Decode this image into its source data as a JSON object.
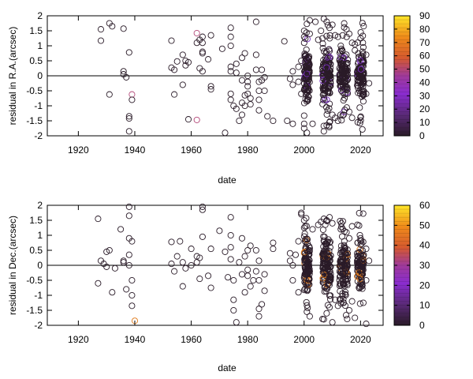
{
  "chart_data": [
    {
      "type": "scatter",
      "title": "",
      "xlabel": "date",
      "ylabel": "residual in R.A.(arcsec)",
      "xlim": [
        1909,
        2028
      ],
      "ylim": [
        -2,
        2
      ],
      "xticks": [
        "1920",
        "1940",
        "1960",
        "1980",
        "2000",
        "2020"
      ],
      "xtick_values": [
        1920,
        1940,
        1960,
        1980,
        2000,
        2020
      ],
      "yticks": [
        "-2",
        "-1.5",
        "-1",
        "-0.5",
        "0",
        "0.5",
        "1",
        "1.5",
        "2"
      ],
      "ytick_values": [
        -2,
        -1.5,
        -1,
        -0.5,
        0,
        0.5,
        1,
        1.5,
        2
      ],
      "zero_line": true,
      "grid": false,
      "colorbar": {
        "range": [
          0,
          90
        ],
        "ticks": [
          "0",
          "10",
          "20",
          "30",
          "40",
          "50",
          "60",
          "70",
          "80",
          "90"
        ],
        "tick_values": [
          0,
          10,
          20,
          30,
          40,
          50,
          60,
          70,
          80,
          90
        ]
      },
      "dense_clusters": [
        {
          "x": 2001,
          "spread": 1.0,
          "n": 120,
          "sigma": 0.45
        },
        {
          "x": 2008,
          "spread": 1.5,
          "n": 140,
          "sigma": 0.45
        },
        {
          "x": 2014,
          "spread": 1.5,
          "n": 130,
          "sigma": 0.4
        },
        {
          "x": 2020,
          "spread": 1.2,
          "n": 110,
          "sigma": 0.3
        }
      ],
      "points": [
        [
          1928,
          1.55,
          5
        ],
        [
          1928,
          1.17,
          5
        ],
        [
          1931,
          1.75,
          5
        ],
        [
          1932,
          1.65,
          5
        ],
        [
          1931,
          -0.62,
          5
        ],
        [
          1936,
          1.57,
          5
        ],
        [
          1936,
          0.15,
          5
        ],
        [
          1936,
          0.05,
          5
        ],
        [
          1937,
          -0.05,
          5
        ],
        [
          1938,
          0.78,
          5
        ],
        [
          1939,
          -0.62,
          50
        ],
        [
          1939,
          -0.8,
          5
        ],
        [
          1938,
          -1.35,
          5
        ],
        [
          1938,
          -1.42,
          5
        ],
        [
          1938,
          -1.85,
          5
        ],
        [
          1953,
          1.17,
          5
        ],
        [
          1953,
          0.27,
          5
        ],
        [
          1954,
          0.2,
          5
        ],
        [
          1954,
          -0.62,
          5
        ],
        [
          1955,
          0.48,
          5
        ],
        [
          1957,
          0.7,
          5
        ],
        [
          1957,
          -0.3,
          5
        ],
        [
          1958,
          0.5,
          5
        ],
        [
          1958,
          0.35,
          5
        ],
        [
          1959,
          0.45,
          5
        ],
        [
          1959,
          -1.45,
          5
        ],
        [
          1962,
          1.42,
          55
        ],
        [
          1962,
          -1.47,
          55
        ],
        [
          1962,
          1.1,
          5
        ],
        [
          1963,
          1.2,
          5
        ],
        [
          1964,
          1.3,
          5
        ],
        [
          1964,
          1.1,
          5
        ],
        [
          1964,
          0.8,
          5
        ],
        [
          1963,
          0.25,
          5
        ],
        [
          1964,
          0.15,
          5
        ],
        [
          1964,
          0.75,
          5
        ],
        [
          1967,
          1.35,
          5
        ],
        [
          1967,
          -0.45,
          5
        ],
        [
          1967,
          -0.35,
          5
        ],
        [
          1966,
          0.55,
          5
        ],
        [
          1971,
          0.9,
          5
        ],
        [
          1972,
          -1.9,
          5
        ],
        [
          1974,
          1.6,
          5
        ],
        [
          1974,
          1.3,
          5
        ],
        [
          1974,
          1.0,
          5
        ],
        [
          1974,
          0.3,
          5
        ],
        [
          1974,
          0.15,
          5
        ],
        [
          1974,
          -0.6,
          5
        ],
        [
          1974,
          -0.8,
          5
        ],
        [
          1975,
          -1.0,
          5
        ],
        [
          1976,
          0.4,
          5
        ],
        [
          1976,
          0.1,
          5
        ],
        [
          1976,
          -1.1,
          5
        ],
        [
          1978,
          0.6,
          5
        ],
        [
          1978,
          -0.15,
          5
        ],
        [
          1978,
          -0.9,
          5
        ],
        [
          1979,
          -0.65,
          5
        ],
        [
          1979,
          0.75,
          5
        ],
        [
          1980,
          -0.35,
          5
        ],
        [
          1980,
          -0.6,
          5
        ],
        [
          1980,
          0.0,
          5
        ],
        [
          1980,
          -0.2,
          5
        ],
        [
          1981,
          -0.75,
          5
        ],
        [
          1981,
          -0.95,
          5
        ],
        [
          1979,
          -1.0,
          5
        ],
        [
          1978,
          -1.3,
          5
        ],
        [
          1977,
          -1.5,
          5
        ],
        [
          1983,
          1.8,
          5
        ],
        [
          1983,
          0.7,
          5
        ],
        [
          1983,
          0.2,
          5
        ],
        [
          1984,
          -0.2,
          5
        ],
        [
          1984,
          -0.5,
          5
        ],
        [
          1984,
          -0.8,
          5
        ],
        [
          1984,
          -1.15,
          5
        ],
        [
          1985,
          0.2,
          5
        ],
        [
          1985,
          -0.15,
          5
        ],
        [
          1986,
          -0.05,
          5
        ],
        [
          1986,
          -0.5,
          5
        ],
        [
          1987,
          -1.35,
          5
        ],
        [
          1989,
          -1.5,
          5
        ],
        [
          1993,
          1.15,
          5
        ],
        [
          1994,
          -1.5,
          5
        ],
        [
          1995,
          -0.1,
          5
        ],
        [
          1996,
          0.15,
          5
        ],
        [
          1996,
          -0.3,
          5
        ],
        [
          1996,
          -1.6,
          5
        ],
        [
          1998,
          0.3,
          5
        ],
        [
          1998,
          -0.2,
          5
        ],
        [
          1999,
          0.5,
          5
        ],
        [
          1999,
          -0.6,
          5
        ],
        [
          2000,
          1.5,
          5
        ],
        [
          2000,
          1.3,
          5
        ],
        [
          2000,
          1.1,
          5
        ],
        [
          2000,
          -1.6,
          5
        ],
        [
          2000,
          -1.75,
          5
        ],
        [
          2001,
          -1.9,
          5
        ],
        [
          2002,
          1.4,
          5
        ],
        [
          2002,
          1.85,
          5
        ],
        [
          2003,
          -1.6,
          5
        ],
        [
          2004,
          1.8,
          5
        ],
        [
          2005,
          1.2,
          5
        ],
        [
          2006,
          1.5,
          5
        ],
        [
          2007,
          1.9,
          5
        ],
        [
          2008,
          1.8,
          5
        ],
        [
          2009,
          1.6,
          5
        ],
        [
          2010,
          1.7,
          5
        ],
        [
          2011,
          1.35,
          5
        ],
        [
          2007,
          -1.85,
          5
        ],
        [
          2008,
          -1.65,
          5
        ],
        [
          2009,
          -1.55,
          5
        ],
        [
          2010,
          -1.3,
          5
        ],
        [
          2011,
          -1.4,
          5
        ],
        [
          2012,
          1.3,
          5
        ],
        [
          2013,
          1.0,
          5
        ],
        [
          2012,
          -1.5,
          5
        ],
        [
          2015,
          1.55,
          5
        ],
        [
          2016,
          1.4,
          5
        ],
        [
          2017,
          1.1,
          5
        ],
        [
          2014,
          -1.3,
          5
        ],
        [
          2016,
          -1.2,
          5
        ],
        [
          2017,
          -1.4,
          5
        ],
        [
          2018,
          1.05,
          5
        ],
        [
          2018,
          0.85,
          5
        ],
        [
          2019,
          -1.55,
          5
        ],
        [
          2020,
          1.25,
          5
        ],
        [
          2021,
          0.95,
          5
        ],
        [
          2021,
          -0.85,
          5
        ],
        [
          2022,
          -0.6,
          5
        ],
        [
          2022,
          0.7,
          5
        ],
        [
          2023,
          -0.25,
          5
        ]
      ]
    },
    {
      "type": "scatter",
      "title": "",
      "xlabel": "date",
      "ylabel": "residual in Dec.(arcsec)",
      "xlim": [
        1909,
        2028
      ],
      "ylim": [
        -2,
        2
      ],
      "xticks": [
        "1920",
        "1940",
        "1960",
        "1980",
        "2000",
        "2020"
      ],
      "xtick_values": [
        1920,
        1940,
        1960,
        1980,
        2000,
        2020
      ],
      "yticks": [
        "-2",
        "-1.5",
        "-1",
        "-0.5",
        "0",
        "0.5",
        "1",
        "1.5",
        "2"
      ],
      "ytick_values": [
        -2,
        -1.5,
        -1,
        -0.5,
        0,
        0.5,
        1,
        1.5,
        2
      ],
      "zero_line": true,
      "grid": false,
      "colorbar": {
        "range": [
          0,
          60
        ],
        "ticks": [
          "0",
          "10",
          "20",
          "30",
          "40",
          "50",
          "60"
        ],
        "tick_values": [
          0,
          10,
          20,
          30,
          40,
          50,
          60
        ]
      },
      "dense_clusters": [
        {
          "x": 2001,
          "spread": 1.0,
          "n": 120,
          "sigma": 0.45
        },
        {
          "x": 2008,
          "spread": 1.5,
          "n": 140,
          "sigma": 0.45
        },
        {
          "x": 2014,
          "spread": 1.5,
          "n": 130,
          "sigma": 0.4
        },
        {
          "x": 2020,
          "spread": 1.2,
          "n": 110,
          "sigma": 0.3
        }
      ],
      "points": [
        [
          1927,
          1.55,
          5
        ],
        [
          1928,
          0.15,
          5
        ],
        [
          1927,
          -0.6,
          5
        ],
        [
          1929,
          0.05,
          5
        ],
        [
          1930,
          0.45,
          5
        ],
        [
          1931,
          0.5,
          5
        ],
        [
          1930,
          -0.05,
          5
        ],
        [
          1932,
          -0.9,
          5
        ],
        [
          1933,
          -0.1,
          5
        ],
        [
          1935,
          1.2,
          5
        ],
        [
          1936,
          0.15,
          5
        ],
        [
          1936,
          0.1,
          5
        ],
        [
          1937,
          -0.8,
          5
        ],
        [
          1938,
          1.95,
          5
        ],
        [
          1938,
          1.65,
          5
        ],
        [
          1938,
          0.9,
          5
        ],
        [
          1939,
          0.8,
          5
        ],
        [
          1938,
          0.35,
          5
        ],
        [
          1938,
          0.0,
          5
        ],
        [
          1939,
          -0.5,
          5
        ],
        [
          1939,
          -1.0,
          5
        ],
        [
          1939,
          -1.35,
          5
        ],
        [
          1940,
          -1.85,
          45
        ],
        [
          1953,
          0.78,
          5
        ],
        [
          1953,
          0.05,
          5
        ],
        [
          1954,
          -0.2,
          5
        ],
        [
          1955,
          0.3,
          5
        ],
        [
          1956,
          0.8,
          5
        ],
        [
          1957,
          0.1,
          5
        ],
        [
          1957,
          -0.7,
          5
        ],
        [
          1958,
          -0.1,
          5
        ],
        [
          1960,
          0.55,
          5
        ],
        [
          1960,
          0.0,
          5
        ],
        [
          1962,
          0.1,
          5
        ],
        [
          1962,
          0.3,
          5
        ],
        [
          1963,
          0.25,
          5
        ],
        [
          1963,
          -0.45,
          5
        ],
        [
          1964,
          1.95,
          5
        ],
        [
          1964,
          1.85,
          5
        ],
        [
          1964,
          0.95,
          5
        ],
        [
          1966,
          -0.35,
          5
        ],
        [
          1967,
          -0.75,
          5
        ],
        [
          1967,
          0.55,
          5
        ],
        [
          1970,
          1.15,
          5
        ],
        [
          1972,
          0.45,
          5
        ],
        [
          1973,
          -0.4,
          5
        ],
        [
          1974,
          1.6,
          5
        ],
        [
          1974,
          1.0,
          5
        ],
        [
          1974,
          0.6,
          5
        ],
        [
          1974,
          0.2,
          5
        ],
        [
          1975,
          -0.5,
          5
        ],
        [
          1975,
          -1.15,
          5
        ],
        [
          1975,
          -1.5,
          5
        ],
        [
          1976,
          -1.9,
          5
        ],
        [
          1977,
          0.1,
          5
        ],
        [
          1978,
          0.9,
          5
        ],
        [
          1978,
          -0.3,
          5
        ],
        [
          1979,
          0.3,
          5
        ],
        [
          1979,
          -0.9,
          5
        ],
        [
          1980,
          0.5,
          5
        ],
        [
          1980,
          -0.15,
          5
        ],
        [
          1980,
          -0.35,
          5
        ],
        [
          1981,
          0.65,
          5
        ],
        [
          1981,
          -0.7,
          5
        ],
        [
          1982,
          -0.5,
          5
        ],
        [
          1983,
          0.5,
          5
        ],
        [
          1983,
          -0.2,
          5
        ],
        [
          1984,
          0.15,
          5
        ],
        [
          1984,
          -0.5,
          5
        ],
        [
          1984,
          -1.45,
          5
        ],
        [
          1984,
          -1.7,
          5
        ],
        [
          1985,
          -1.3,
          5
        ],
        [
          1986,
          -0.85,
          5
        ],
        [
          1986,
          -0.3,
          5
        ],
        [
          1989,
          0.75,
          5
        ],
        [
          1989,
          0.55,
          5
        ],
        [
          1995,
          0.4,
          5
        ],
        [
          1995,
          0.15,
          5
        ],
        [
          1996,
          0.0,
          5
        ],
        [
          1996,
          -0.5,
          5
        ],
        [
          1997,
          0.35,
          5
        ],
        [
          1998,
          0.8,
          5
        ],
        [
          1998,
          -0.9,
          5
        ],
        [
          1999,
          1.75,
          5
        ],
        [
          1999,
          1.7,
          5
        ],
        [
          2000,
          1.5,
          5
        ],
        [
          2000,
          1.25,
          5
        ],
        [
          2001,
          -1.55,
          5
        ],
        [
          2002,
          -1.7,
          5
        ],
        [
          2003,
          1.2,
          5
        ],
        [
          2005,
          1.35,
          5
        ],
        [
          2006,
          1.45,
          5
        ],
        [
          2007,
          1.55,
          5
        ],
        [
          2008,
          1.5,
          5
        ],
        [
          2009,
          1.6,
          5
        ],
        [
          2010,
          1.4,
          5
        ],
        [
          2007,
          -1.8,
          5
        ],
        [
          2008,
          -1.6,
          5
        ],
        [
          2009,
          -1.4,
          5
        ],
        [
          2010,
          -1.9,
          5
        ],
        [
          2011,
          -1.15,
          5
        ],
        [
          2013,
          1.2,
          5
        ],
        [
          2012,
          -1.35,
          5
        ],
        [
          2015,
          1.1,
          5
        ],
        [
          2016,
          0.9,
          5
        ],
        [
          2017,
          1.3,
          5
        ],
        [
          2014,
          -1.25,
          5
        ],
        [
          2016,
          -1.5,
          5
        ],
        [
          2017,
          -1.2,
          5
        ],
        [
          2018,
          -1.75,
          5
        ],
        [
          2019,
          0.75,
          5
        ],
        [
          2020,
          0.9,
          5
        ],
        [
          2021,
          -1.25,
          5
        ],
        [
          2022,
          0.55,
          5
        ],
        [
          2022,
          -0.5,
          5
        ],
        [
          2022,
          -1.95,
          5
        ],
        [
          2023,
          0.15,
          5
        ]
      ]
    }
  ]
}
